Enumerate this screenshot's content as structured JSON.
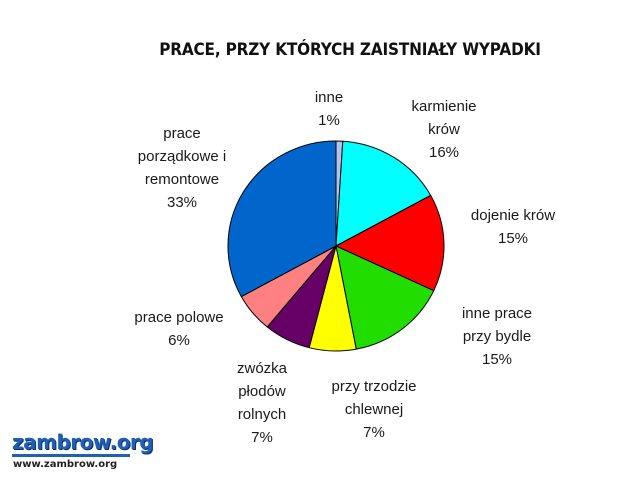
{
  "chart_data": {
    "type": "pie",
    "title": "PRACE, PRZY KTÓRYCH ZAISTNIAŁY WYPADKI",
    "slices": [
      {
        "label_lines": [
          "inne",
          "1%"
        ],
        "value": 1,
        "color": "#b0c4f0"
      },
      {
        "label_lines": [
          "karmienie",
          "krów",
          "16%"
        ],
        "value": 16,
        "color": "#00ffff"
      },
      {
        "label_lines": [
          "dojenie krów",
          "15%"
        ],
        "value": 15,
        "color": "#ff0000"
      },
      {
        "label_lines": [
          "inne prace",
          "przy bydle",
          "15%"
        ],
        "value": 15,
        "color": "#22dd00"
      },
      {
        "label_lines": [
          "przy trzodzie",
          "chlewnej",
          "7%"
        ],
        "value": 7,
        "color": "#ffff00"
      },
      {
        "label_lines": [
          "zwózka",
          "płodów",
          "rolnych",
          "7%"
        ],
        "value": 7,
        "color": "#660066"
      },
      {
        "label_lines": [
          "prace polowe",
          "6%"
        ],
        "value": 6,
        "color": "#ff8080"
      },
      {
        "label_lines": [
          "prace",
          "porządkowe i",
          "remontowe",
          "33%"
        ],
        "value": 33,
        "color": "#0066cc"
      }
    ],
    "legend": "none"
  },
  "logo": {
    "name": "zambrow.org",
    "url": "www.zambrow.org"
  }
}
